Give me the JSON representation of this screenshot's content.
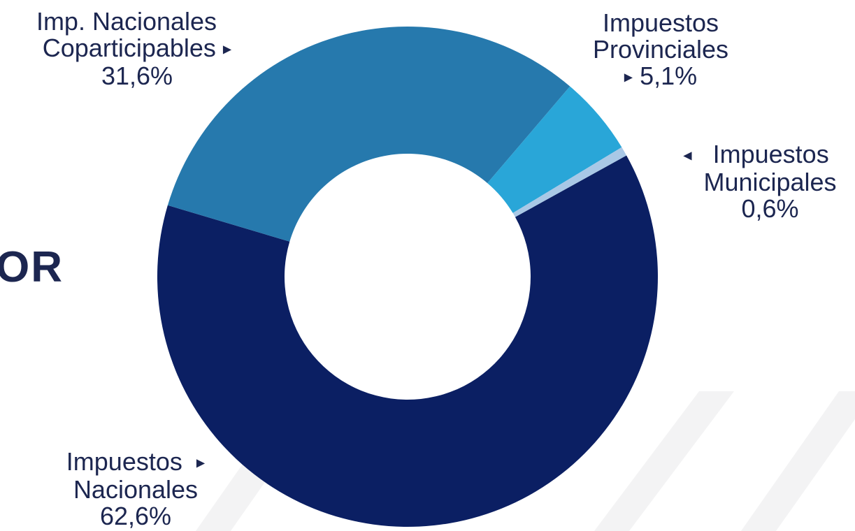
{
  "page": {
    "title_fragment": [
      "OR",
      ""
    ]
  },
  "chart_data": {
    "type": "pie",
    "donut": true,
    "categories": [
      "Impuestos Nacionales",
      "Imp. Nacionales Coparticipables",
      "Impuestos Provinciales",
      "Impuestos Municipales"
    ],
    "values": [
      62.6,
      31.6,
      5.1,
      0.6
    ],
    "units": "%",
    "colors": [
      "#0b1f63",
      "#2679ad",
      "#29a6d8",
      "#a9c8e6"
    ],
    "labels": {
      "coparticipables": {
        "line1": "Imp. Nacionales",
        "line2": "Coparticipables",
        "pct": "31,6%"
      },
      "provinciales": {
        "line1": "Impuestos",
        "line2": "Provinciales",
        "pct": "5,1%"
      },
      "municipales": {
        "line1": "Impuestos",
        "line2": "Municipales",
        "pct": "0,6%"
      },
      "nacionales": {
        "line1": "Impuestos",
        "line2": "Nacionales",
        "pct": "62,6%"
      }
    },
    "arrow_glyphs": {
      "right": "▶",
      "left": "◀"
    },
    "legend": "none"
  }
}
